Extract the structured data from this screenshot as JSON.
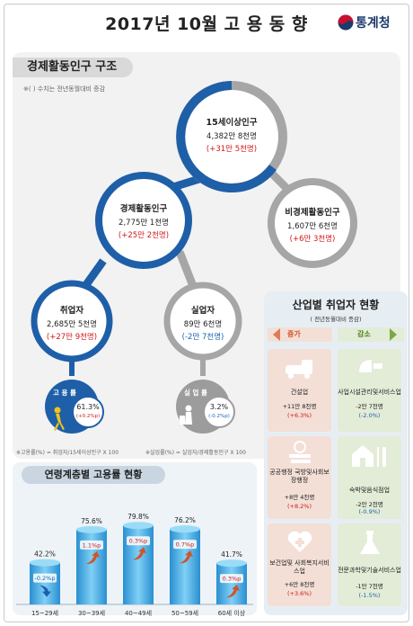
{
  "header": {
    "title": "2017년 10월 고 용 동 향",
    "logo_text": "통계청"
  },
  "structure": {
    "banner": "경제활동인구 구조",
    "note": "※( ) 수치는 전년동월대비 증감",
    "nodes": {
      "pop15": {
        "title": "15세이상인구",
        "value": "4,382만 8천명",
        "change": "(+31만 5천명)"
      },
      "active": {
        "title": "경제활동인구",
        "value": "2,775만 1천명",
        "change": "(+25만 2천명)"
      },
      "inactive": {
        "title": "비경제활동인구",
        "value": "1,607만 6천명",
        "change": "(+6만 3천명)"
      },
      "employed": {
        "title": "취업자",
        "value": "2,685만 5천명",
        "change": "(+27만 9천명)"
      },
      "unemployed": {
        "title": "실업자",
        "value": "89만 6천명",
        "change": "(-2만 7천명)"
      }
    },
    "employment_rate": {
      "label": "고 용 률",
      "value": "61.3%",
      "change": "(+0.2%p)"
    },
    "unemployment_rate": {
      "label": "실 업 률",
      "value": "3.2%",
      "change": "(-0.2%p)"
    },
    "footnote_left": "※고용률(%) = 취업자/15세이상인구 X 100",
    "footnote_right": "※실업률(%) = 실업자/경제활동인구 X 100",
    "colors": {
      "blue": "#1e5fa8",
      "gray": "#a6a6a6",
      "increase": "#d01818",
      "decrease": "#1a62b0"
    }
  },
  "industry": {
    "title": "산업별 취업자 현황",
    "subtitle": "( 전년동월대비 증감)",
    "increase_label": "증가",
    "decrease_label": "감소",
    "increase": [
      {
        "name": "건설업",
        "value": "+11만 8천명",
        "change": "(+6.3%)",
        "icon": "construction-icon"
      },
      {
        "name": "공공행정 국방및사회보장행정",
        "value": "+8만 4천명",
        "change": "(+8.2%)",
        "icon": "documents-icon"
      },
      {
        "name": "보건업및 사회복지서비스업",
        "value": "+6만 8천명",
        "change": "(+3.6%)",
        "icon": "health-icon"
      }
    ],
    "decrease": [
      {
        "name": "사업시설관리및서비스업",
        "value": "-2만 7천명",
        "change": "(-2.0%)",
        "icon": "cleaning-icon"
      },
      {
        "name": "숙박및음식점업",
        "value": "-2만 2천명",
        "change": "(-0.9%)",
        "icon": "house-cutlery-icon"
      },
      {
        "name": "전문과학및기술서비스업",
        "value": "-1만 7천명",
        "change": "(-1.5%)",
        "icon": "flask-icon"
      }
    ]
  },
  "chart_data": {
    "type": "bar",
    "title": "연령계층별 고용률 현황",
    "categories": [
      "15~29세",
      "30~39세",
      "40~49세",
      "50~59세",
      "60세 이상"
    ],
    "values": [
      42.2,
      75.6,
      79.8,
      76.2,
      41.7
    ],
    "value_labels": [
      "42.2%",
      "75.6%",
      "79.8%",
      "76.2%",
      "41.7%"
    ],
    "changes": [
      "-0.2%p",
      "1.1%p",
      "0.3%p",
      "0.7%p",
      "0.3%p"
    ],
    "change_direction": [
      "down",
      "up",
      "up",
      "up",
      "up"
    ],
    "ylim": [
      0,
      100
    ],
    "colors": {
      "bar": "#39a9e0",
      "arrow": "#d0542a"
    }
  }
}
